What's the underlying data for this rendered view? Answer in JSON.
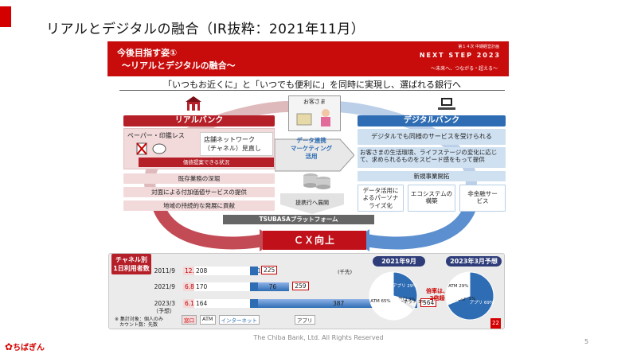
{
  "page": {
    "title": "リアルとデジタルの融合（IR抜粋：2021年11月）"
  },
  "banner": {
    "title1": "今後目指す姿①",
    "title2": "～リアルとデジタルの融合～",
    "plan_small": "第１４次 中期経営計画",
    "plan_name": "NEXT STEP 2023",
    "plan_slogan": "～未来へ、つながる・超える～"
  },
  "headline": "「いつもお近くに」と「いつでも便利に」を同時に実現し、選ばれる銀行へ",
  "center": {
    "customer": "お客さま",
    "box_line1": "データ連携",
    "box_line2": "マーケティング",
    "box_line3": "活用",
    "proposal": "提携行へ展開"
  },
  "real": {
    "header": "リアルバンク",
    "paperless": "ペーパー・印鑑レス",
    "store_network_1": "店舗ネットワーク",
    "store_network_2": "（チャネル）見直し",
    "value_proposal": "価値提案できる状況",
    "rows": [
      "既存業務の深堀",
      "対面による付加価値サービスの提供",
      "地域の持続的な発展に貢献"
    ]
  },
  "digital": {
    "header": "デジタルバンク",
    "rows": [
      "デジタルでも同様のサービスを受けられる",
      "お客さまの生活環境、ライフステージの変化に応じて、求められるものをスピード感をもって提供",
      "新規事業開拓"
    ],
    "cards": [
      "データ活用によるパーソナライズ化",
      "エコシステムの構築",
      "非金融サービス"
    ]
  },
  "platform": "TSUBASAプラットフォーム",
  "cx": "ＣＸ向上",
  "channel": {
    "label1": "チャネル別",
    "label2": "1日利用者数",
    "unit": "(千先)",
    "periods": [
      {
        "label": "2011/9",
        "counter": "12.2",
        "atm": "208",
        "internet": "5.1",
        "app": "",
        "total": "225"
      },
      {
        "label": "2021/9",
        "counter": "6.8",
        "atm": "170",
        "internet": "6.9",
        "app": "76",
        "total": "259"
      },
      {
        "label": "2023/3",
        "sub": "（予想）",
        "counter": "6.1",
        "atm": "164",
        "internet": "6.2",
        "app": "387",
        "total": "564"
      }
    ],
    "values": {
      "counter": [
        12.2,
        6.8,
        6.1
      ],
      "atm": [
        208,
        170,
        164
      ],
      "internet": [
        5.1,
        6.9,
        6.2
      ],
      "app": [
        0,
        76,
        387
      ],
      "total": [
        225,
        259,
        564
      ]
    },
    "note1": "※ 集計対象：個人のみ",
    "note2": "カウント数：先数",
    "legend": [
      "窓口",
      "ATM",
      "インターネット",
      "アプリ"
    ]
  },
  "pies": {
    "left_title": "2021年9月",
    "right_title": "2023年3月予想",
    "left": {
      "app": "アプリ\n29%",
      "window": "窓口\n3%",
      "internet": "インターネット\n3%",
      "atm": "ATM\n65%"
    },
    "right": {
      "window": "窓口 1%",
      "atm": "ATM\n29%",
      "internet": "インターネット\n1%",
      "app": "アプリ\n69%"
    },
    "growth": "倍率は、\n2倍超",
    "left_values": {
      "app": 29,
      "window": 3,
      "internet": 3,
      "atm": 65
    },
    "right_values": {
      "app": 69,
      "window": 1,
      "internet": 1,
      "atm": 29
    },
    "badge": "22"
  },
  "footer": "The Chiba Bank, Ltd. All Rights Reserved",
  "page_number": "5",
  "logo": "ちばぎん",
  "colors": {
    "red": "#c80c0c",
    "blue": "#2e6db4",
    "pink": "#f2d9da",
    "lightblue": "#cfe0f1"
  }
}
